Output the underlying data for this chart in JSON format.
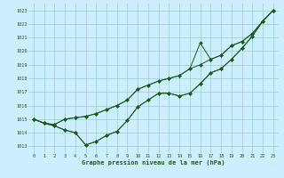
{
  "xlabel": "Graphe pression niveau de la mer (hPa)",
  "xlim_min": -0.5,
  "xlim_max": 23.5,
  "ylim_min": 1012.5,
  "ylim_max": 1023.5,
  "yticks": [
    1013,
    1014,
    1015,
    1016,
    1017,
    1018,
    1019,
    1020,
    1021,
    1022,
    1023
  ],
  "xticks": [
    0,
    1,
    2,
    3,
    4,
    5,
    6,
    7,
    8,
    9,
    10,
    11,
    12,
    13,
    14,
    15,
    16,
    17,
    18,
    19,
    20,
    21,
    22,
    23
  ],
  "bg_color": "#cceeff",
  "line_color": "#1a5c1a",
  "grid_color": "#99cccc",
  "series": [
    [
      1015.0,
      1014.7,
      1014.6,
      1015.0,
      1015.1,
      1015.2,
      1015.4,
      1015.7,
      1016.0,
      1016.4,
      1017.2,
      1017.5,
      1017.8,
      1018.0,
      1018.2,
      1018.7,
      1019.0,
      1019.4,
      1019.7,
      1020.4,
      1020.7,
      1021.3,
      1022.2,
      1023.0
    ],
    [
      1015.0,
      1014.7,
      1014.6,
      1015.0,
      1015.1,
      1015.2,
      1015.4,
      1015.7,
      1016.0,
      1016.4,
      1017.2,
      1017.5,
      1017.8,
      1018.0,
      1018.2,
      1018.7,
      1020.6,
      1019.4,
      1019.7,
      1020.4,
      1020.7,
      1021.3,
      1022.2,
      1023.0
    ],
    [
      1015.0,
      1014.7,
      1014.5,
      1014.2,
      1014.0,
      1013.1,
      1013.35,
      1013.8,
      1014.1,
      1014.9,
      1015.9,
      1016.4,
      1016.9,
      1016.9,
      1016.7,
      1016.9,
      1017.6,
      1018.4,
      1018.7,
      1019.4,
      1020.2,
      1021.1,
      1022.2,
      1023.0
    ],
    [
      1015.0,
      1014.7,
      1014.5,
      1014.2,
      1014.0,
      1013.1,
      1013.35,
      1013.8,
      1014.1,
      1014.9,
      1015.9,
      1016.4,
      1016.9,
      1016.9,
      1016.7,
      1016.9,
      1017.6,
      1018.4,
      1018.7,
      1019.4,
      1020.2,
      1021.1,
      1022.2,
      1023.0
    ]
  ]
}
